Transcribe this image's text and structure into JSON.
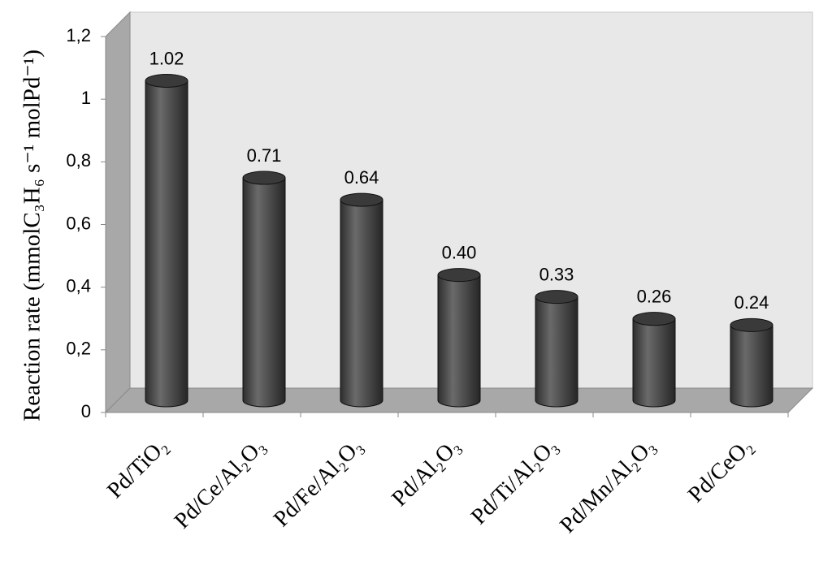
{
  "chart_data": {
    "type": "bar",
    "y_label": "Reaction rate (mmolC₃H₆ s⁻¹ molPd⁻¹)",
    "categories": [
      "Pd/TiO₂",
      "Pd/Ce/Al₂O₃",
      "Pd/Fe/Al₂O₃",
      "Pd/Al₂O₃",
      "Pd/Ti/Al₂O₃",
      "Pd/Mn/Al₂O₃",
      "Pd/CeO₂"
    ],
    "values": [
      1.02,
      0.71,
      0.64,
      0.4,
      0.33,
      0.26,
      0.24
    ],
    "value_labels": [
      "1.02",
      "0.71",
      "0.64",
      "0.40",
      "0.33",
      "0.26",
      "0.24"
    ],
    "color": "#4a4a4a",
    "ylim": [
      0,
      1.2
    ],
    "yticks": [
      0,
      {
        "value": 0.2,
        "label": "0,2"
      },
      {
        "value": 0.4,
        "label": "0,4"
      },
      {
        "value": 0.6,
        "label": "0,6"
      },
      {
        "value": 0.8,
        "label": "0,8"
      },
      1,
      {
        "value": 1.2,
        "label": "1,2"
      }
    ]
  }
}
